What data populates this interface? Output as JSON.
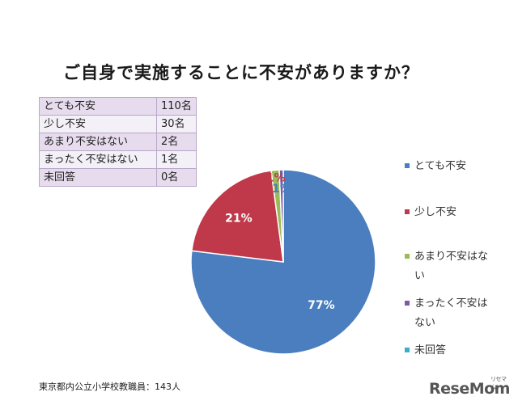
{
  "chart_data": {
    "type": "pie",
    "title": "ご自身で実施することに不安がありますか？",
    "categories": [
      "とても不安",
      "少し不安",
      "あまり不安はない",
      "まったく不安はない",
      "未回答"
    ],
    "values": [
      110,
      30,
      2,
      1,
      0
    ],
    "percent_labels": [
      "77%",
      "21%",
      "1%",
      "1%",
      ""
    ],
    "colors": [
      "#4a7ebf",
      "#c0394a",
      "#9bbb59",
      "#7b5aa6",
      "#3aaccc"
    ],
    "table": [
      {
        "label": "とても不安",
        "value": "110名"
      },
      {
        "label": "少し不安",
        "value": "30名"
      },
      {
        "label": "あまり不安はない",
        "value": "2名"
      },
      {
        "label": "まったく不安はない",
        "value": "1名"
      },
      {
        "label": "未回答",
        "value": "0名"
      }
    ],
    "legend_position": "right",
    "source": "東京都内公立小学校教職員：143人"
  },
  "watermark": {
    "text": "ReseMom",
    "sub": "リセマム"
  }
}
